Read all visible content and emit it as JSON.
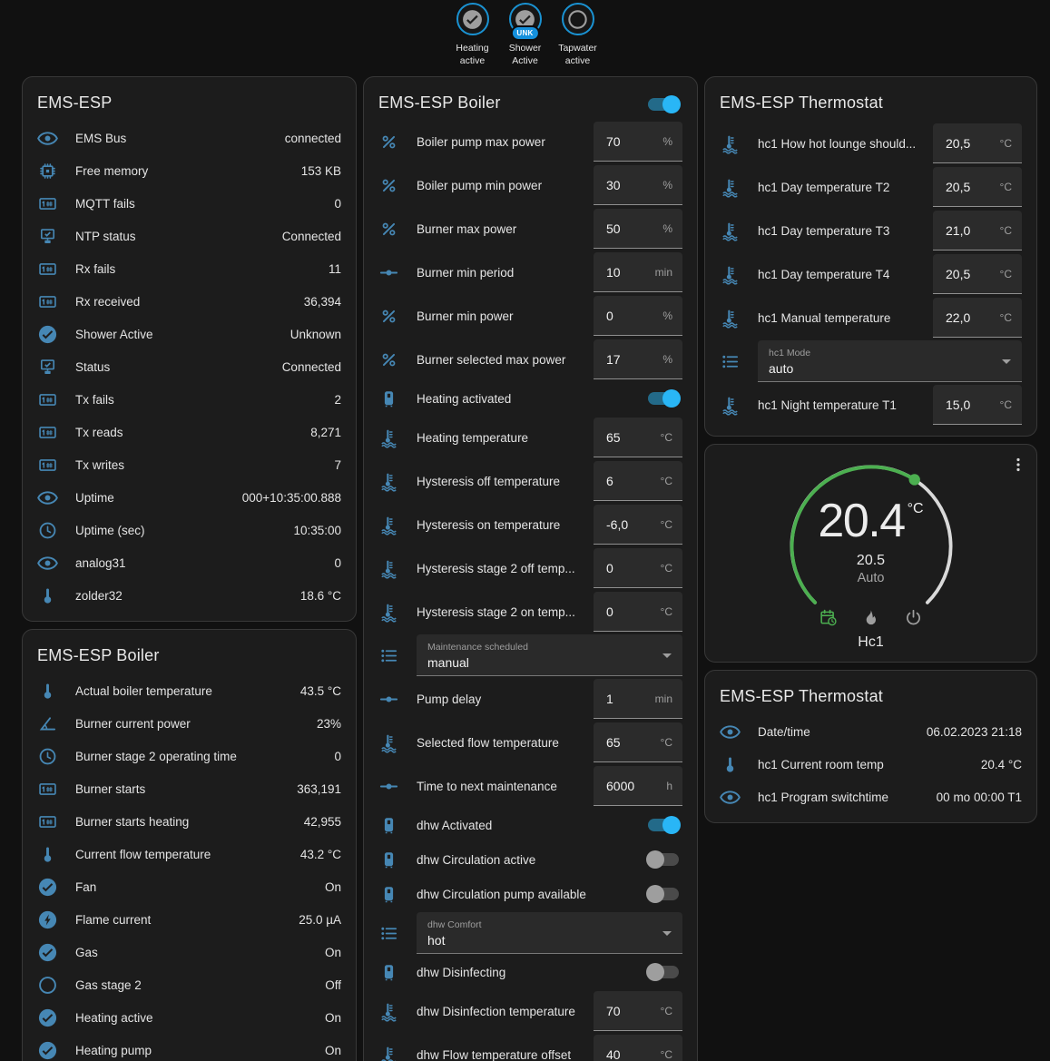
{
  "colors": {
    "page_bg": "#111111",
    "card_bg": "#1c1c1c",
    "icon_blue": "#4687b4",
    "toggle_on": "#29b6f6",
    "accent_green": "#4caf50",
    "badge_blue": "#1a92d2"
  },
  "badges": [
    {
      "icon": "check-circle",
      "label": "Heating active"
    },
    {
      "icon": "check-circle",
      "label": "Shower Active",
      "tag": "UNK"
    },
    {
      "icon": "circle-outline",
      "label": "Tapwater active"
    }
  ],
  "cards": {
    "left_status": {
      "title": "EMS-ESP",
      "rows": [
        {
          "type": "sensor",
          "icon": "eye",
          "label": "EMS Bus",
          "value": "connected"
        },
        {
          "type": "sensor",
          "icon": "chip",
          "label": "Free memory",
          "value": "153 KB"
        },
        {
          "type": "sensor",
          "icon": "counter",
          "label": "MQTT fails",
          "value": "0"
        },
        {
          "type": "sensor",
          "icon": "network",
          "label": "NTP status",
          "value": "Connected"
        },
        {
          "type": "sensor",
          "icon": "counter",
          "label": "Rx fails",
          "value": "11"
        },
        {
          "type": "sensor",
          "icon": "counter",
          "label": "Rx received",
          "value": "36,394"
        },
        {
          "type": "sensor",
          "icon": "check-circle",
          "label": "Shower Active",
          "value": "Unknown"
        },
        {
          "type": "sensor",
          "icon": "network",
          "label": "Status",
          "value": "Connected"
        },
        {
          "type": "sensor",
          "icon": "counter",
          "label": "Tx fails",
          "value": "2"
        },
        {
          "type": "sensor",
          "icon": "counter",
          "label": "Tx reads",
          "value": "8,271"
        },
        {
          "type": "sensor",
          "icon": "counter",
          "label": "Tx writes",
          "value": "7"
        },
        {
          "type": "sensor",
          "icon": "eye",
          "label": "Uptime",
          "value": "000+10:35:00.888"
        },
        {
          "type": "sensor",
          "icon": "clock",
          "label": "Uptime (sec)",
          "value": "10:35:00"
        },
        {
          "type": "sensor",
          "icon": "eye",
          "label": "analog31",
          "value": "0"
        },
        {
          "type": "sensor",
          "icon": "thermometer",
          "label": "zolder32",
          "value": "18.6 °C"
        }
      ]
    },
    "left_boiler": {
      "title": "EMS-ESP Boiler",
      "rows": [
        {
          "type": "sensor",
          "icon": "thermometer",
          "label": "Actual boiler temperature",
          "value": "43.5 °C"
        },
        {
          "type": "sensor",
          "icon": "angle",
          "label": "Burner current power",
          "value": "23%"
        },
        {
          "type": "sensor",
          "icon": "clock",
          "label": "Burner stage 2 operating time",
          "value": "0"
        },
        {
          "type": "sensor",
          "icon": "counter",
          "label": "Burner starts",
          "value": "363,191"
        },
        {
          "type": "sensor",
          "icon": "counter",
          "label": "Burner starts heating",
          "value": "42,955"
        },
        {
          "type": "sensor",
          "icon": "thermometer",
          "label": "Current flow temperature",
          "value": "43.2 °C"
        },
        {
          "type": "sensor",
          "icon": "check-circle",
          "label": "Fan",
          "value": "On"
        },
        {
          "type": "sensor",
          "icon": "bolt-circle",
          "label": "Flame current",
          "value": "25.0 µA"
        },
        {
          "type": "sensor",
          "icon": "check-circle",
          "label": "Gas",
          "value": "On"
        },
        {
          "type": "sensor",
          "icon": "circle-outline",
          "label": "Gas stage 2",
          "value": "Off"
        },
        {
          "type": "sensor",
          "icon": "check-circle",
          "label": "Heating active",
          "value": "On"
        },
        {
          "type": "sensor",
          "icon": "check-circle",
          "label": "Heating pump",
          "value": "On"
        }
      ]
    },
    "boiler_controls": {
      "title": "EMS-ESP Boiler",
      "header_toggle_state": "on",
      "rows": [
        {
          "type": "number",
          "icon": "percent",
          "label": "Boiler pump max power",
          "value": "70",
          "unit": "%"
        },
        {
          "type": "number",
          "icon": "percent",
          "label": "Boiler pump min power",
          "value": "30",
          "unit": "%"
        },
        {
          "type": "number",
          "icon": "percent",
          "label": "Burner max power",
          "value": "50",
          "unit": "%"
        },
        {
          "type": "number",
          "icon": "ray",
          "label": "Burner min period",
          "value": "10",
          "unit": "min"
        },
        {
          "type": "number",
          "icon": "percent",
          "label": "Burner min power",
          "value": "0",
          "unit": "%"
        },
        {
          "type": "number",
          "icon": "percent",
          "label": "Burner selected max power",
          "value": "17",
          "unit": "%"
        },
        {
          "type": "toggle",
          "icon": "boiler",
          "label": "Heating activated",
          "state": "on"
        },
        {
          "type": "number",
          "icon": "coolant",
          "label": "Heating temperature",
          "value": "65",
          "unit": "°C"
        },
        {
          "type": "number",
          "icon": "coolant",
          "label": "Hysteresis off temperature",
          "value": "6",
          "unit": "°C"
        },
        {
          "type": "number",
          "icon": "coolant",
          "label": "Hysteresis on temperature",
          "value": "-6,0",
          "unit": "°C"
        },
        {
          "type": "number",
          "icon": "coolant",
          "label": "Hysteresis stage 2 off temp...",
          "value": "0",
          "unit": "°C"
        },
        {
          "type": "number",
          "icon": "coolant",
          "label": "Hysteresis stage 2 on temp...",
          "value": "0",
          "unit": "°C"
        },
        {
          "type": "select",
          "icon": "list",
          "label": "Maintenance scheduled",
          "value": "manual"
        },
        {
          "type": "number",
          "icon": "ray",
          "label": "Pump delay",
          "value": "1",
          "unit": "min"
        },
        {
          "type": "number",
          "icon": "coolant",
          "label": "Selected flow temperature",
          "value": "65",
          "unit": "°C"
        },
        {
          "type": "number",
          "icon": "ray",
          "label": "Time to next maintenance",
          "value": "6000",
          "unit": "h"
        },
        {
          "type": "toggle",
          "icon": "boiler",
          "label": "dhw Activated",
          "state": "on"
        },
        {
          "type": "toggle",
          "icon": "boiler",
          "label": "dhw Circulation active",
          "state": "off"
        },
        {
          "type": "toggle",
          "icon": "boiler",
          "label": "dhw Circulation pump available",
          "state": "off"
        },
        {
          "type": "select",
          "icon": "list",
          "label": "dhw Comfort",
          "value": "hot"
        },
        {
          "type": "toggle",
          "icon": "boiler",
          "label": "dhw Disinfecting",
          "state": "off"
        },
        {
          "type": "number",
          "icon": "coolant",
          "label": "dhw Disinfection temperature",
          "value": "70",
          "unit": "°C"
        },
        {
          "type": "number",
          "icon": "coolant",
          "label": "dhw Flow temperature offset",
          "value": "40",
          "unit": "°C"
        }
      ]
    },
    "thermostat_controls": {
      "title": "EMS-ESP Thermostat",
      "rows": [
        {
          "type": "number",
          "icon": "coolant",
          "label": "hc1 How hot lounge should...",
          "value": "20,5",
          "unit": "°C"
        },
        {
          "type": "number",
          "icon": "coolant",
          "label": "hc1 Day temperature T2",
          "value": "20,5",
          "unit": "°C"
        },
        {
          "type": "number",
          "icon": "coolant",
          "label": "hc1 Day temperature T3",
          "value": "21,0",
          "unit": "°C"
        },
        {
          "type": "number",
          "icon": "coolant",
          "label": "hc1 Day temperature T4",
          "value": "20,5",
          "unit": "°C"
        },
        {
          "type": "number",
          "icon": "coolant",
          "label": "hc1 Manual temperature",
          "value": "22,0",
          "unit": "°C"
        },
        {
          "type": "select",
          "icon": "list",
          "label": "hc1 Mode",
          "value": "auto"
        },
        {
          "type": "number",
          "icon": "coolant",
          "label": "hc1 Night temperature T1",
          "value": "15,0",
          "unit": "°C"
        }
      ]
    },
    "thermostat_card": {
      "current": "20.4",
      "unit": "°C",
      "target": "20.5",
      "mode_label": "Auto",
      "name": "Hc1",
      "modes": [
        {
          "icon": "calendar-clock",
          "active": true
        },
        {
          "icon": "fire",
          "active": false
        },
        {
          "icon": "power",
          "active": false
        }
      ]
    },
    "thermostat_status": {
      "title": "EMS-ESP Thermostat",
      "rows": [
        {
          "type": "sensor",
          "icon": "eye",
          "label": "Date/time",
          "value": "06.02.2023 21:18"
        },
        {
          "type": "sensor",
          "icon": "thermometer",
          "label": "hc1 Current room temp",
          "value": "20.4 °C"
        },
        {
          "type": "sensor",
          "icon": "eye",
          "label": "hc1 Program switchtime",
          "value": "00 mo 00:00 T1"
        }
      ]
    }
  }
}
